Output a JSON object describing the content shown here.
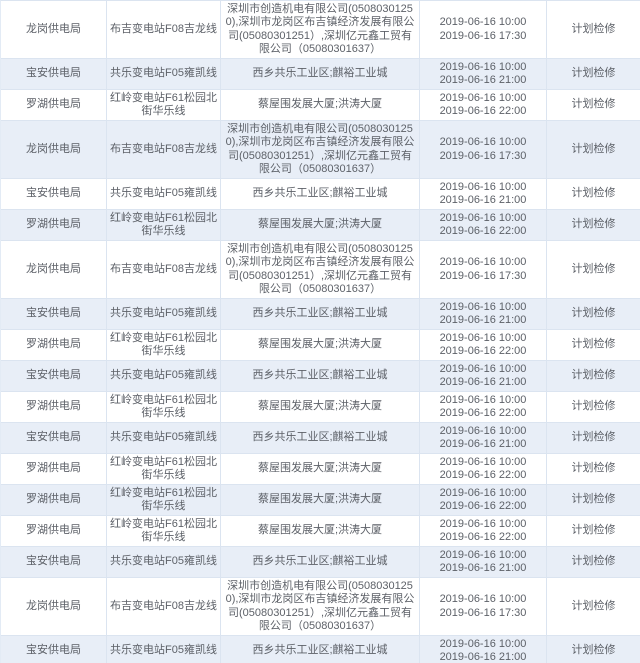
{
  "colors": {
    "stripe_bg": "#e8eef7",
    "row_bg": "#ffffff",
    "border": "#dbe4f0",
    "text": "#5d6168"
  },
  "rows": [
    {
      "bureau": "龙岗供电局",
      "line": "布吉变电站F08吉龙线",
      "customers": "深圳市创造机电有限公司(05080301250),深圳市龙岗区布吉镇经济发展有限公司(05080301251）,深圳亿元鑫工贸有限公司（05080301637）",
      "time_start": "2019-06-16 10:00",
      "time_end": "2019-06-16 17:30",
      "type": "计划检修"
    },
    {
      "bureau": "宝安供电局",
      "line": "共乐变电站F05雍凯线",
      "customers": "西乡共乐工业区;麒裕工业城",
      "time_start": "2019-06-16 10:00",
      "time_end": "2019-06-16 21:00",
      "type": "计划检修"
    },
    {
      "bureau": "罗湖供电局",
      "line": "红岭变电站F61松园北街华乐线",
      "customers": "蔡屋围发展大厦;洪涛大厦",
      "time_start": "2019-06-16 10:00",
      "time_end": "2019-06-16 22:00",
      "type": "计划检修"
    },
    {
      "bureau": "龙岗供电局",
      "line": "布吉变电站F08吉龙线",
      "customers": "深圳市创造机电有限公司(05080301250),深圳市龙岗区布吉镇经济发展有限公司(05080301251）,深圳亿元鑫工贸有限公司（05080301637）",
      "time_start": "2019-06-16 10:00",
      "time_end": "2019-06-16 17:30",
      "type": "计划检修"
    },
    {
      "bureau": "宝安供电局",
      "line": "共乐变电站F05雍凯线",
      "customers": "西乡共乐工业区;麒裕工业城",
      "time_start": "2019-06-16 10:00",
      "time_end": "2019-06-16 21:00",
      "type": "计划检修"
    },
    {
      "bureau": "罗湖供电局",
      "line": "红岭变电站F61松园北街华乐线",
      "customers": "蔡屋围发展大厦;洪涛大厦",
      "time_start": "2019-06-16 10:00",
      "time_end": "2019-06-16 22:00",
      "type": "计划检修"
    },
    {
      "bureau": "龙岗供电局",
      "line": "布吉变电站F08吉龙线",
      "customers": "深圳市创造机电有限公司(05080301250),深圳市龙岗区布吉镇经济发展有限公司(05080301251）,深圳亿元鑫工贸有限公司（05080301637）",
      "time_start": "2019-06-16 10:00",
      "time_end": "2019-06-16 17:30",
      "type": "计划检修"
    },
    {
      "bureau": "宝安供电局",
      "line": "共乐变电站F05雍凯线",
      "customers": "西乡共乐工业区;麒裕工业城",
      "time_start": "2019-06-16 10:00",
      "time_end": "2019-06-16 21:00",
      "type": "计划检修"
    },
    {
      "bureau": "罗湖供电局",
      "line": "红岭变电站F61松园北街华乐线",
      "customers": "蔡屋围发展大厦;洪涛大厦",
      "time_start": "2019-06-16 10:00",
      "time_end": "2019-06-16 22:00",
      "type": "计划检修"
    },
    {
      "bureau": "宝安供电局",
      "line": "共乐变电站F05雍凯线",
      "customers": "西乡共乐工业区;麒裕工业城",
      "time_start": "2019-06-16 10:00",
      "time_end": "2019-06-16 21:00",
      "type": "计划检修"
    },
    {
      "bureau": "罗湖供电局",
      "line": "红岭变电站F61松园北街华乐线",
      "customers": "蔡屋围发展大厦;洪涛大厦",
      "time_start": "2019-06-16 10:00",
      "time_end": "2019-06-16 22:00",
      "type": "计划检修"
    },
    {
      "bureau": "宝安供电局",
      "line": "共乐变电站F05雍凯线",
      "customers": "西乡共乐工业区;麒裕工业城",
      "time_start": "2019-06-16 10:00",
      "time_end": "2019-06-16 21:00",
      "type": "计划检修"
    },
    {
      "bureau": "罗湖供电局",
      "line": "红岭变电站F61松园北街华乐线",
      "customers": "蔡屋围发展大厦;洪涛大厦",
      "time_start": "2019-06-16 10:00",
      "time_end": "2019-06-16 22:00",
      "type": "计划检修"
    },
    {
      "bureau": "罗湖供电局",
      "line": "红岭变电站F61松园北街华乐线",
      "customers": "蔡屋围发展大厦;洪涛大厦",
      "time_start": "2019-06-16 10:00",
      "time_end": "2019-06-16 22:00",
      "type": "计划检修"
    },
    {
      "bureau": "罗湖供电局",
      "line": "红岭变电站F61松园北街华乐线",
      "customers": "蔡屋围发展大厦;洪涛大厦",
      "time_start": "2019-06-16 10:00",
      "time_end": "2019-06-16 22:00",
      "type": "计划检修"
    },
    {
      "bureau": "宝安供电局",
      "line": "共乐变电站F05雍凯线",
      "customers": "西乡共乐工业区;麒裕工业城",
      "time_start": "2019-06-16 10:00",
      "time_end": "2019-06-16 21:00",
      "type": "计划检修"
    },
    {
      "bureau": "龙岗供电局",
      "line": "布吉变电站F08吉龙线",
      "customers": "深圳市创造机电有限公司(05080301250),深圳市龙岗区布吉镇经济发展有限公司(05080301251）,深圳亿元鑫工贸有限公司（05080301637）",
      "time_start": "2019-06-16 10:00",
      "time_end": "2019-06-16 17:30",
      "type": "计划检修"
    },
    {
      "bureau": "宝安供电局",
      "line": "共乐变电站F05雍凯线",
      "customers": "西乡共乐工业区;麒裕工业城",
      "time_start": "2019-06-16 10:00",
      "time_end": "2019-06-16 21:00",
      "type": "计划检修"
    }
  ]
}
